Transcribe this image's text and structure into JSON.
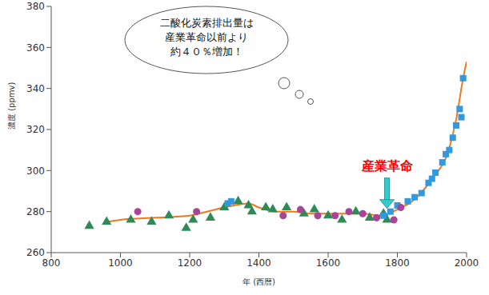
{
  "chart_data": {
    "type": "line",
    "xlabel": "年 (西暦)",
    "ylabel": "濃度 (ppmv)",
    "xlim": [
      800,
      2000
    ],
    "xticks": [
      800,
      1000,
      1200,
      1400,
      1600,
      1800,
      2000
    ],
    "ylim": [
      260,
      380
    ],
    "yticks": [
      260,
      280,
      300,
      320,
      340,
      360,
      380
    ],
    "grid": false,
    "cloud_text": [
      "二酸化炭素排出量は",
      "産業革命以前より",
      "約４０％増加！"
    ],
    "annotation": {
      "text": "産業革命",
      "x": 1770,
      "y": 280
    },
    "series": [
      {
        "type": "line",
        "color": "#f07820",
        "x": [
          960,
          1000,
          1100,
          1200,
          1250,
          1300,
          1370,
          1400,
          1450,
          1500,
          1550,
          1600,
          1700,
          1750,
          1800,
          1850,
          1900,
          1950,
          1970,
          1990,
          2000
        ],
        "values": [
          275,
          276,
          277,
          278,
          280,
          282,
          284,
          282,
          280,
          280,
          279,
          279,
          279,
          278,
          281,
          286,
          296,
          311,
          325,
          345,
          353
        ]
      },
      {
        "type": "scatter",
        "marker": "triangle",
        "color": "#2e8b57",
        "x": [
          910,
          960,
          1030,
          1090,
          1140,
          1190,
          1210,
          1260,
          1300,
          1340,
          1370,
          1380,
          1420,
          1440,
          1480,
          1530,
          1560,
          1600,
          1640,
          1680,
          1720,
          1760,
          1770
        ],
        "values": [
          273,
          275,
          276,
          275,
          278,
          272,
          276,
          277,
          282,
          285,
          283,
          280,
          282,
          281,
          282,
          279,
          281,
          278,
          276,
          280,
          277,
          279,
          276
        ]
      },
      {
        "type": "scatter",
        "marker": "square",
        "color": "#3399dd",
        "x": [
          1310,
          1320,
          1760,
          1780,
          1800,
          1830,
          1850,
          1870,
          1890,
          1900,
          1910,
          1930,
          1940,
          1950,
          1960,
          1970,
          1980,
          1985,
          1990
        ],
        "values": [
          284,
          285,
          278,
          280,
          283,
          285,
          287,
          289,
          294,
          296,
          299,
          304,
          308,
          310,
          316,
          322,
          330,
          326,
          345
        ]
      },
      {
        "type": "scatter",
        "marker": "circle",
        "color": "#aa4499",
        "x": [
          1050,
          1220,
          1470,
          1520,
          1570,
          1620,
          1660,
          1700,
          1740,
          1790,
          1810
        ],
        "values": [
          280,
          280,
          278,
          281,
          278,
          278,
          280,
          279,
          277,
          276,
          282
        ]
      }
    ]
  }
}
